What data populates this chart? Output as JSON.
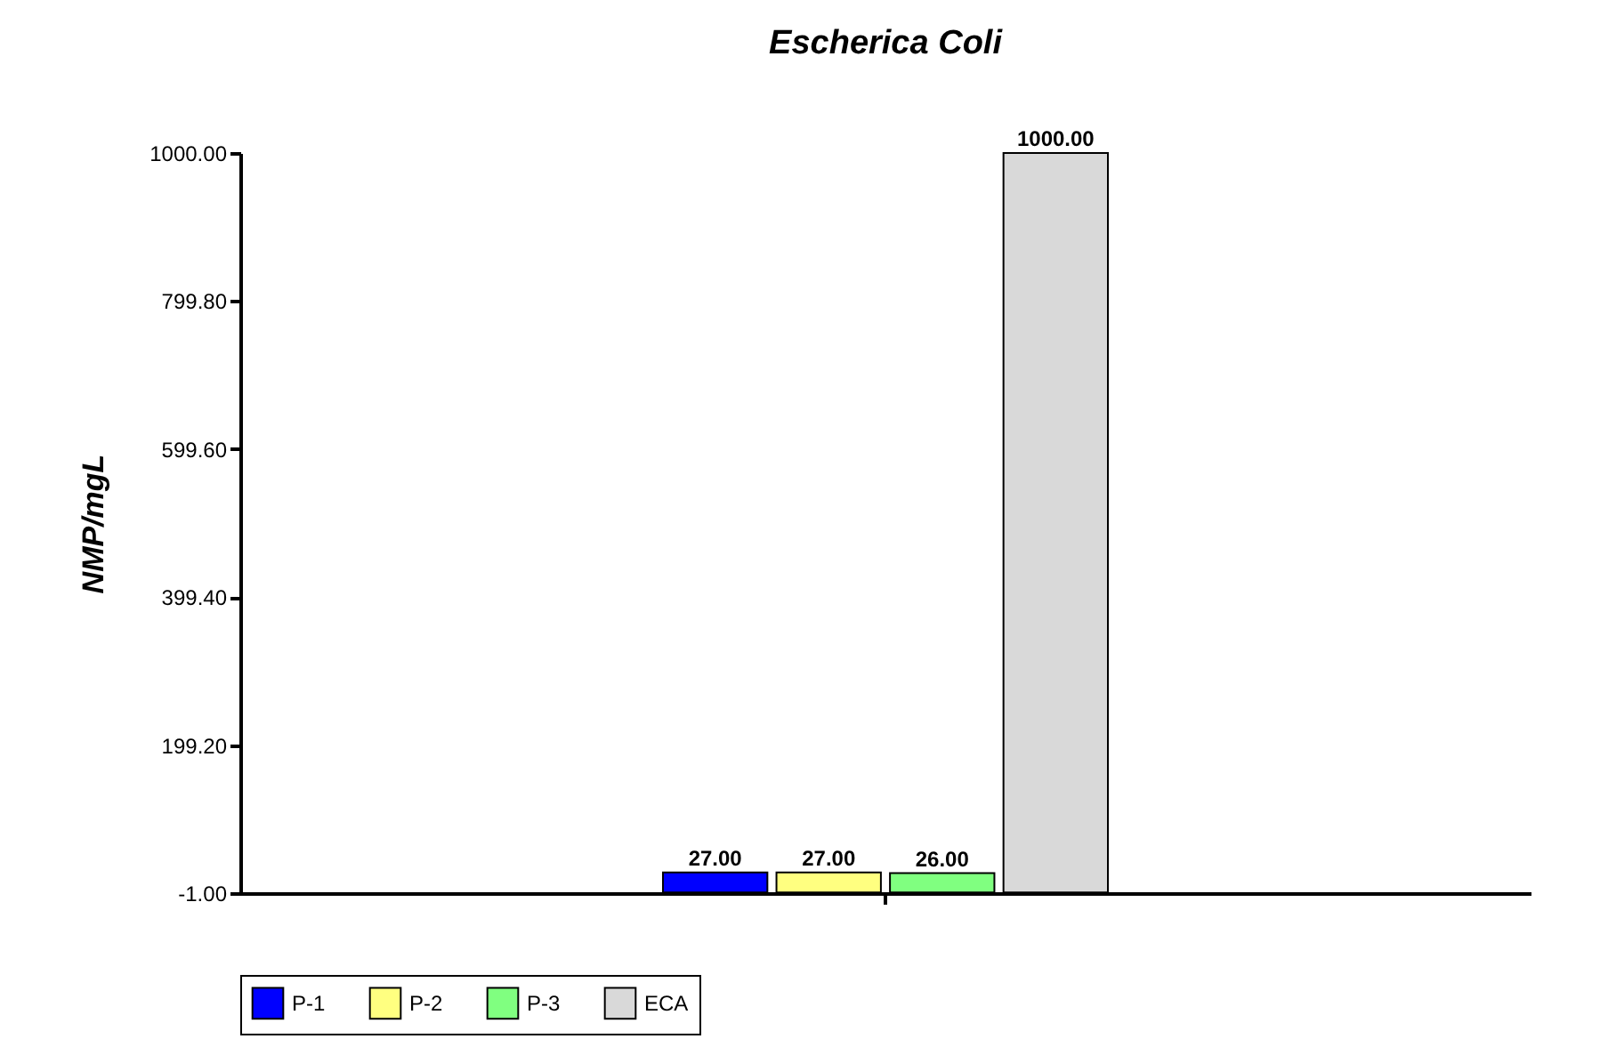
{
  "chart_data": {
    "type": "bar",
    "title": "Escherica Coli",
    "ylabel": "NMP/mgL",
    "categories": [
      null
    ],
    "series": [
      {
        "name": "P-1",
        "color": "#0000ff",
        "values": [
          27
        ],
        "value_labels": [
          "27.00"
        ]
      },
      {
        "name": "P-2",
        "color": "#ffff80",
        "values": [
          27
        ],
        "value_labels": [
          "27.00"
        ]
      },
      {
        "name": "P-3",
        "color": "#80ff80",
        "values": [
          26
        ],
        "value_labels": [
          "26.00"
        ]
      },
      {
        "name": "ECA",
        "color": "#d9d9d9",
        "values": [
          1000
        ],
        "value_labels": [
          "1000.00"
        ]
      }
    ],
    "ylim": [
      -1,
      1000
    ],
    "yticks": [
      {
        "value": -1,
        "label": "-1.00"
      },
      {
        "value": 199.2,
        "label": "199.20"
      },
      {
        "value": 399.4,
        "label": "399.40"
      },
      {
        "value": 599.6,
        "label": "599.60"
      },
      {
        "value": 799.8,
        "label": "799.80"
      },
      {
        "value": 1000,
        "label": "1000.00"
      }
    ],
    "grid": false,
    "legend": "bottom"
  }
}
